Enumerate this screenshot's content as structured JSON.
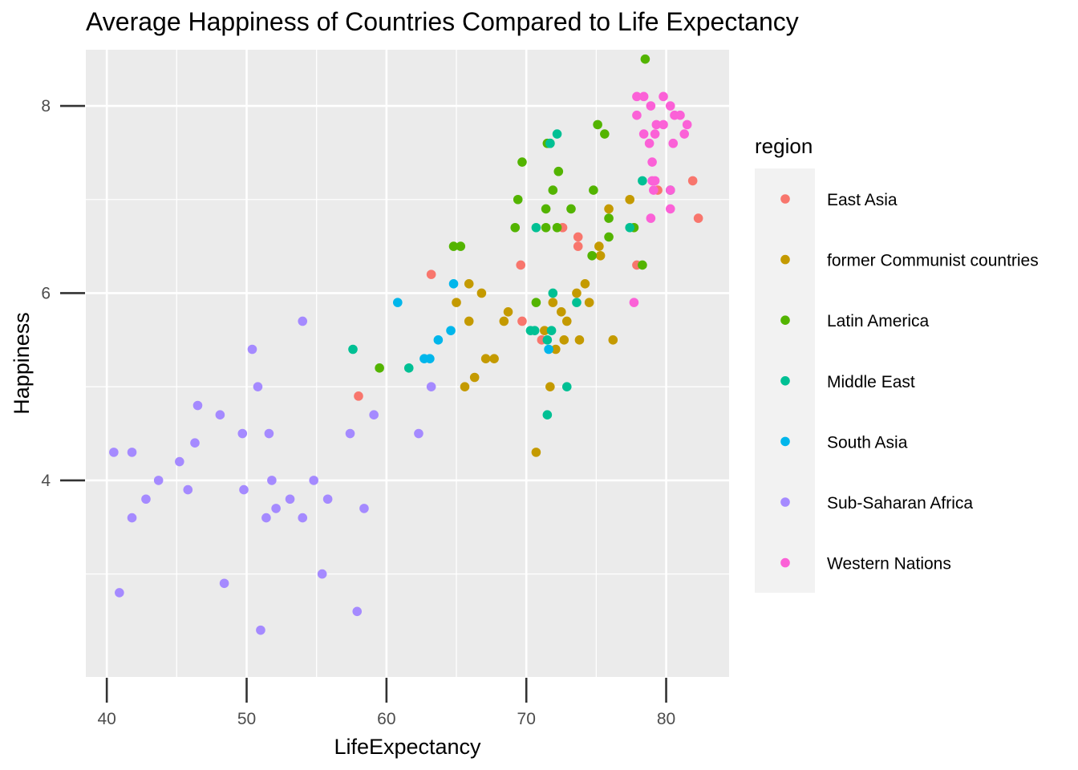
{
  "chart_data": {
    "type": "scatter",
    "title": "Average Happiness of Countries Compared to Life Expectancy",
    "xlabel": "LifeExpectancy",
    "ylabel": "Happiness",
    "xlim": [
      38.5,
      84.5
    ],
    "ylim": [
      1.9,
      8.6
    ],
    "x_ticks": [
      40,
      50,
      60,
      70,
      80
    ],
    "y_ticks": [
      4,
      6,
      8
    ],
    "x_tick_labels": [
      "40",
      "50",
      "60",
      "70",
      "80"
    ],
    "y_tick_labels": [
      "4",
      "6",
      "8"
    ],
    "grid": true,
    "legend": {
      "title": "region",
      "position": "right"
    },
    "series": [
      {
        "name": "East Asia",
        "color": "#F8766D",
        "points": [
          [
            79.4,
            7.1
          ],
          [
            82.3,
            6.8
          ],
          [
            81.9,
            7.2
          ],
          [
            73.7,
            6.6
          ],
          [
            73.7,
            6.5
          ],
          [
            72.6,
            6.7
          ],
          [
            69.6,
            6.3
          ],
          [
            63.2,
            6.2
          ],
          [
            69.7,
            5.7
          ],
          [
            71.1,
            5.5
          ],
          [
            58.0,
            4.9
          ],
          [
            77.9,
            6.3
          ]
        ]
      },
      {
        "name": "former Communist countries",
        "color": "#C49A00",
        "points": [
          [
            77.4,
            7.0
          ],
          [
            75.9,
            6.9
          ],
          [
            75.2,
            6.5
          ],
          [
            75.3,
            6.4
          ],
          [
            73.6,
            6.0
          ],
          [
            74.2,
            6.1
          ],
          [
            74.5,
            5.9
          ],
          [
            73.8,
            5.5
          ],
          [
            72.9,
            5.7
          ],
          [
            72.5,
            5.8
          ],
          [
            71.9,
            5.9
          ],
          [
            71.3,
            5.6
          ],
          [
            72.1,
            5.4
          ],
          [
            72.7,
            5.5
          ],
          [
            76.2,
            5.5
          ],
          [
            65.0,
            5.9
          ],
          [
            65.9,
            6.1
          ],
          [
            66.8,
            6.0
          ],
          [
            68.7,
            5.8
          ],
          [
            68.4,
            5.7
          ],
          [
            65.9,
            5.7
          ],
          [
            67.1,
            5.3
          ],
          [
            67.7,
            5.3
          ],
          [
            66.3,
            5.1
          ],
          [
            65.6,
            5.0
          ],
          [
            71.7,
            5.0
          ],
          [
            70.7,
            4.3
          ]
        ]
      },
      {
        "name": "Latin America",
        "color": "#53B400",
        "points": [
          [
            78.5,
            8.5
          ],
          [
            75.1,
            7.8
          ],
          [
            75.6,
            7.7
          ],
          [
            71.5,
            7.6
          ],
          [
            71.7,
            7.6
          ],
          [
            69.7,
            7.4
          ],
          [
            72.3,
            7.3
          ],
          [
            71.9,
            7.1
          ],
          [
            74.8,
            7.1
          ],
          [
            69.4,
            7.0
          ],
          [
            71.4,
            6.9
          ],
          [
            73.2,
            6.9
          ],
          [
            75.9,
            6.8
          ],
          [
            69.2,
            6.7
          ],
          [
            71.4,
            6.7
          ],
          [
            72.2,
            6.7
          ],
          [
            77.7,
            6.7
          ],
          [
            75.9,
            6.6
          ],
          [
            74.7,
            6.4
          ],
          [
            78.3,
            6.3
          ],
          [
            64.8,
            6.5
          ],
          [
            65.3,
            6.5
          ],
          [
            70.7,
            5.9
          ],
          [
            59.5,
            5.2
          ]
        ]
      },
      {
        "name": "Middle East",
        "color": "#00C094",
        "points": [
          [
            72.2,
            7.7
          ],
          [
            71.7,
            7.6
          ],
          [
            78.3,
            7.2
          ],
          [
            80.3,
            7.1
          ],
          [
            70.7,
            6.7
          ],
          [
            77.4,
            6.7
          ],
          [
            71.9,
            6.0
          ],
          [
            73.6,
            5.9
          ],
          [
            70.3,
            5.6
          ],
          [
            70.6,
            5.6
          ],
          [
            71.8,
            5.6
          ],
          [
            71.5,
            5.5
          ],
          [
            57.6,
            5.4
          ],
          [
            61.6,
            5.2
          ],
          [
            72.9,
            5.0
          ],
          [
            71.5,
            4.7
          ]
        ]
      },
      {
        "name": "South Asia",
        "color": "#00B6EB",
        "points": [
          [
            60.8,
            5.9
          ],
          [
            64.8,
            6.1
          ],
          [
            63.7,
            5.5
          ],
          [
            64.6,
            5.6
          ],
          [
            62.7,
            5.3
          ],
          [
            63.1,
            5.3
          ],
          [
            71.6,
            5.4
          ]
        ]
      },
      {
        "name": "Sub-Saharan Africa",
        "color": "#A58AFF",
        "points": [
          [
            54.0,
            5.7
          ],
          [
            50.4,
            5.4
          ],
          [
            50.8,
            5.0
          ],
          [
            63.2,
            5.0
          ],
          [
            46.5,
            4.8
          ],
          [
            48.1,
            4.7
          ],
          [
            59.1,
            4.7
          ],
          [
            49.7,
            4.5
          ],
          [
            51.6,
            4.5
          ],
          [
            57.4,
            4.5
          ],
          [
            62.3,
            4.5
          ],
          [
            46.3,
            4.4
          ],
          [
            40.5,
            4.3
          ],
          [
            41.8,
            4.3
          ],
          [
            45.2,
            4.2
          ],
          [
            43.7,
            4.0
          ],
          [
            51.8,
            4.0
          ],
          [
            54.8,
            4.0
          ],
          [
            45.8,
            3.9
          ],
          [
            49.8,
            3.9
          ],
          [
            42.8,
            3.8
          ],
          [
            53.1,
            3.8
          ],
          [
            55.8,
            3.8
          ],
          [
            41.8,
            3.6
          ],
          [
            51.4,
            3.6
          ],
          [
            54.0,
            3.6
          ],
          [
            52.1,
            3.7
          ],
          [
            58.4,
            3.7
          ],
          [
            55.4,
            3.0
          ],
          [
            48.4,
            2.9
          ],
          [
            40.9,
            2.8
          ],
          [
            57.9,
            2.6
          ],
          [
            51.0,
            2.4
          ]
        ]
      },
      {
        "name": "Western Nations",
        "color": "#FB61D7",
        "points": [
          [
            77.9,
            8.1
          ],
          [
            78.4,
            8.1
          ],
          [
            79.8,
            8.1
          ],
          [
            78.9,
            8.0
          ],
          [
            80.3,
            8.0
          ],
          [
            77.9,
            7.9
          ],
          [
            80.6,
            7.9
          ],
          [
            81.0,
            7.9
          ],
          [
            79.3,
            7.8
          ],
          [
            79.8,
            7.8
          ],
          [
            81.5,
            7.8
          ],
          [
            78.4,
            7.7
          ],
          [
            79.2,
            7.7
          ],
          [
            81.3,
            7.7
          ],
          [
            78.8,
            7.6
          ],
          [
            80.5,
            7.6
          ],
          [
            79.0,
            7.4
          ],
          [
            79.0,
            7.2
          ],
          [
            79.2,
            7.2
          ],
          [
            79.1,
            7.1
          ],
          [
            80.3,
            7.1
          ],
          [
            80.3,
            6.9
          ],
          [
            78.9,
            6.8
          ],
          [
            77.7,
            5.9
          ]
        ]
      }
    ]
  }
}
